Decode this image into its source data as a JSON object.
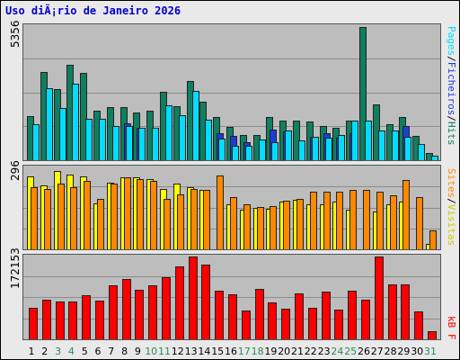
{
  "title": "Uso diÃ¡rio de Janeiro 2026",
  "colors": {
    "hits": "#0f7f5f",
    "files": "#00ddff",
    "pages": "#1b3fd6",
    "visits": "#ffff00",
    "sites": "#ff8800",
    "kbf": "#ff0000",
    "weekend": "#2e8b57",
    "weekday": "#000000"
  },
  "chart_data": [
    {
      "type": "bar",
      "categories": [
        "1",
        "2",
        "3",
        "4",
        "5",
        "6",
        "7",
        "8",
        "9",
        "10",
        "11",
        "12",
        "13",
        "14",
        "15",
        "16",
        "17",
        "18",
        "19",
        "20",
        "21",
        "22",
        "23",
        "24",
        "25",
        "26",
        "27",
        "28",
        "29",
        "30",
        "31"
      ],
      "weekend_days": [
        "3",
        "4",
        "10",
        "11",
        "17",
        "18",
        "24",
        "25",
        "31"
      ],
      "ymax_label": "5356",
      "ylim": [
        0,
        5356
      ],
      "series": [
        {
          "name": "Hits",
          "values": [
            1762,
            3530,
            2855,
            3824,
            3493,
            2003,
            2120,
            2130,
            1910,
            1983,
            2750,
            2180,
            3200,
            2370,
            1742,
            1340,
            1022,
            1006,
            1738,
            1582,
            1585,
            1573,
            1368,
            1292,
            1592,
            5356,
            2230,
            1440,
            1749,
            970,
            294
          ]
        },
        {
          "name": "Ficheiros",
          "values": [
            1448,
            2898,
            2093,
            3093,
            1652,
            1665,
            1375,
            1390,
            1299,
            1287,
            2202,
            1809,
            2790,
            1611,
            858,
            580,
            577,
            850,
            718,
            1190,
            794,
            930,
            901,
            1007,
            1594,
            1603,
            1188,
            1188,
            954,
            647,
            198
          ]
        },
        {
          "name": "Pages",
          "values": [
            0,
            0,
            0,
            0,
            0,
            0,
            0,
            1471,
            1303,
            0,
            0,
            0,
            0,
            0,
            1074,
            986,
            711,
            0,
            1235,
            1142,
            0,
            937,
            1090,
            903,
            1079,
            0,
            0,
            0,
            1375,
            0,
            0
          ]
        }
      ]
    },
    {
      "type": "bar",
      "categories": [
        "1",
        "2",
        "3",
        "4",
        "5",
        "6",
        "7",
        "8",
        "9",
        "10",
        "11",
        "12",
        "13",
        "14",
        "15",
        "16",
        "17",
        "18",
        "19",
        "20",
        "21",
        "22",
        "23",
        "24",
        "25",
        "26",
        "27",
        "28",
        "29",
        "30",
        "31"
      ],
      "ymax_label": "296",
      "ylim": [
        0,
        296
      ],
      "series": [
        {
          "name": "Visitas",
          "values": [
            266,
            234,
            285,
            272,
            266,
            168,
            243,
            263,
            263,
            258,
            221,
            239,
            227,
            218,
            0,
            166,
            146,
            150,
            147,
            173,
            181,
            166,
            163,
            175,
            145,
            0,
            137,
            164,
            173,
            0,
            21
          ]
        },
        {
          "name": "Sites",
          "values": [
            227,
            220,
            240,
            226,
            251,
            185,
            239,
            264,
            256,
            251,
            185,
            202,
            221,
            217,
            271,
            191,
            164,
            154,
            157,
            179,
            184,
            211,
            209,
            211,
            216,
            217,
            209,
            199,
            252,
            190,
            69
          ]
        }
      ]
    },
    {
      "type": "bar",
      "categories": [
        "1",
        "2",
        "3",
        "4",
        "5",
        "6",
        "7",
        "8",
        "9",
        "10",
        "11",
        "12",
        "13",
        "14",
        "15",
        "16",
        "17",
        "18",
        "19",
        "20",
        "21",
        "22",
        "23",
        "24",
        "25",
        "26",
        "27",
        "28",
        "29",
        "30",
        "31"
      ],
      "ymax_label": "172153",
      "ylim": [
        0,
        172153
      ],
      "series": [
        {
          "name": "kB F",
          "values": [
            66000,
            83000,
            78000,
            78000,
            91000,
            80000,
            113000,
            126000,
            103000,
            113000,
            130000,
            151000,
            172153,
            156000,
            101000,
            93000,
            60000,
            104000,
            77000,
            64000,
            95000,
            66000,
            99000,
            61000,
            102000,
            82000,
            172153,
            114000,
            114000,
            58000,
            17000
          ]
        }
      ]
    }
  ]
}
